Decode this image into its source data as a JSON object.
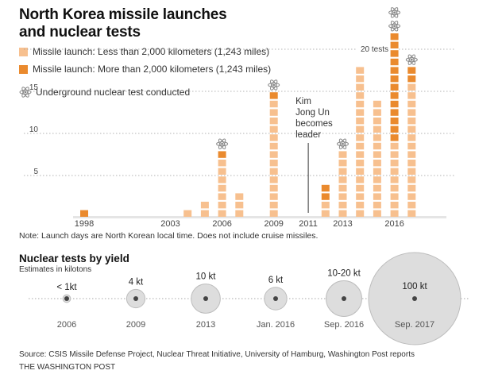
{
  "chart_data": [
    {
      "type": "bar",
      "title": "North Korea missile launches and nuclear tests",
      "stacked": true,
      "x": [
        1998,
        1999,
        2000,
        2001,
        2002,
        2003,
        2004,
        2005,
        2006,
        2007,
        2008,
        2009,
        2010,
        2011,
        2012,
        2013,
        2014,
        2015,
        2016,
        2017
      ],
      "series": [
        {
          "name": "Missile launch: Less than 2,000 kilometers (1,243 miles)",
          "color": "#f7c08f",
          "values": [
            0,
            0,
            0,
            0,
            0,
            0,
            1,
            2,
            7,
            3,
            0,
            14,
            0,
            0,
            2,
            8,
            18,
            14,
            9,
            16
          ]
        },
        {
          "name": "Missile launch: More than 2,000 kilometers (1,243 miles)",
          "color": "#ea8a2e",
          "values": [
            1,
            0,
            0,
            0,
            0,
            0,
            0,
            0,
            1,
            0,
            0,
            1,
            0,
            0,
            2,
            0,
            0,
            0,
            13,
            2
          ]
        }
      ],
      "nuclear_tests": [
        2006,
        2009,
        2013,
        2016,
        2016,
        2017
      ],
      "nuclear_test_label": "Underground nuclear test conducted",
      "annotation": {
        "year": 2011,
        "text": [
          "Kim",
          "Jong Un",
          "becomes",
          "leader"
        ]
      },
      "y_ticks": [
        5,
        10,
        15,
        20
      ],
      "y_tick_20_label": "20 tests",
      "x_tick_labels": [
        "1998",
        "2003",
        "2006",
        "2009",
        "2011",
        "2013",
        "2016"
      ],
      "ylim": [
        0,
        21
      ],
      "grid": true
    },
    {
      "type": "scatter",
      "title": "Nuclear tests by yield",
      "subtitle": "Estimates in kilotons",
      "tests": [
        {
          "label": "2006",
          "yield_label": "< 1kt",
          "yield_kt": 0.7
        },
        {
          "label": "2009",
          "yield_label": "4 kt",
          "yield_kt": 4
        },
        {
          "label": "2013",
          "yield_label": "10 kt",
          "yield_kt": 10
        },
        {
          "label": "Jan. 2016",
          "yield_label": "6 kt",
          "yield_kt": 6
        },
        {
          "label": "Sep. 2016",
          "yield_label": "10-20 kt",
          "yield_kt": 15
        },
        {
          "label": "Sep. 2017",
          "yield_label": "100 kt",
          "yield_kt": 100
        }
      ]
    }
  ],
  "note": "Note: Launch days are North Korean local time. Does not include cruise missiles.",
  "source": "Source: CSIS Missile Defense Project, Nuclear Threat Initiative, University of Hamburg, Washington Post reports",
  "credit": "THE WASHINGTON POST"
}
